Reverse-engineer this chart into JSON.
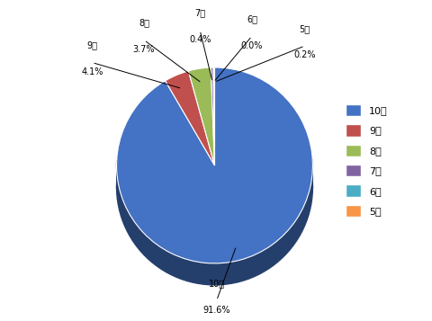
{
  "labels": [
    "10点",
    "9点",
    "8点",
    "7点",
    "6点",
    "5点"
  ],
  "values": [
    91.6,
    4.1,
    3.7,
    0.4,
    0.0,
    0.2
  ],
  "colors": [
    "#4472C4",
    "#C0504D",
    "#9BBB59",
    "#8064A2",
    "#4BACC6",
    "#F79646"
  ],
  "shadow_color": "#1F3864",
  "label_texts": [
    "10点\n91.6%",
    "9点\n4.1%",
    "8点\n3.7%",
    "7点\n0.4%",
    "6点\n0.0%",
    "5点\n0.2%"
  ],
  "legend_labels": [
    "10点",
    "9点",
    "8点",
    "7点",
    "6点",
    "5点"
  ],
  "background_color": "#ffffff",
  "edge_color": "#ffffff"
}
